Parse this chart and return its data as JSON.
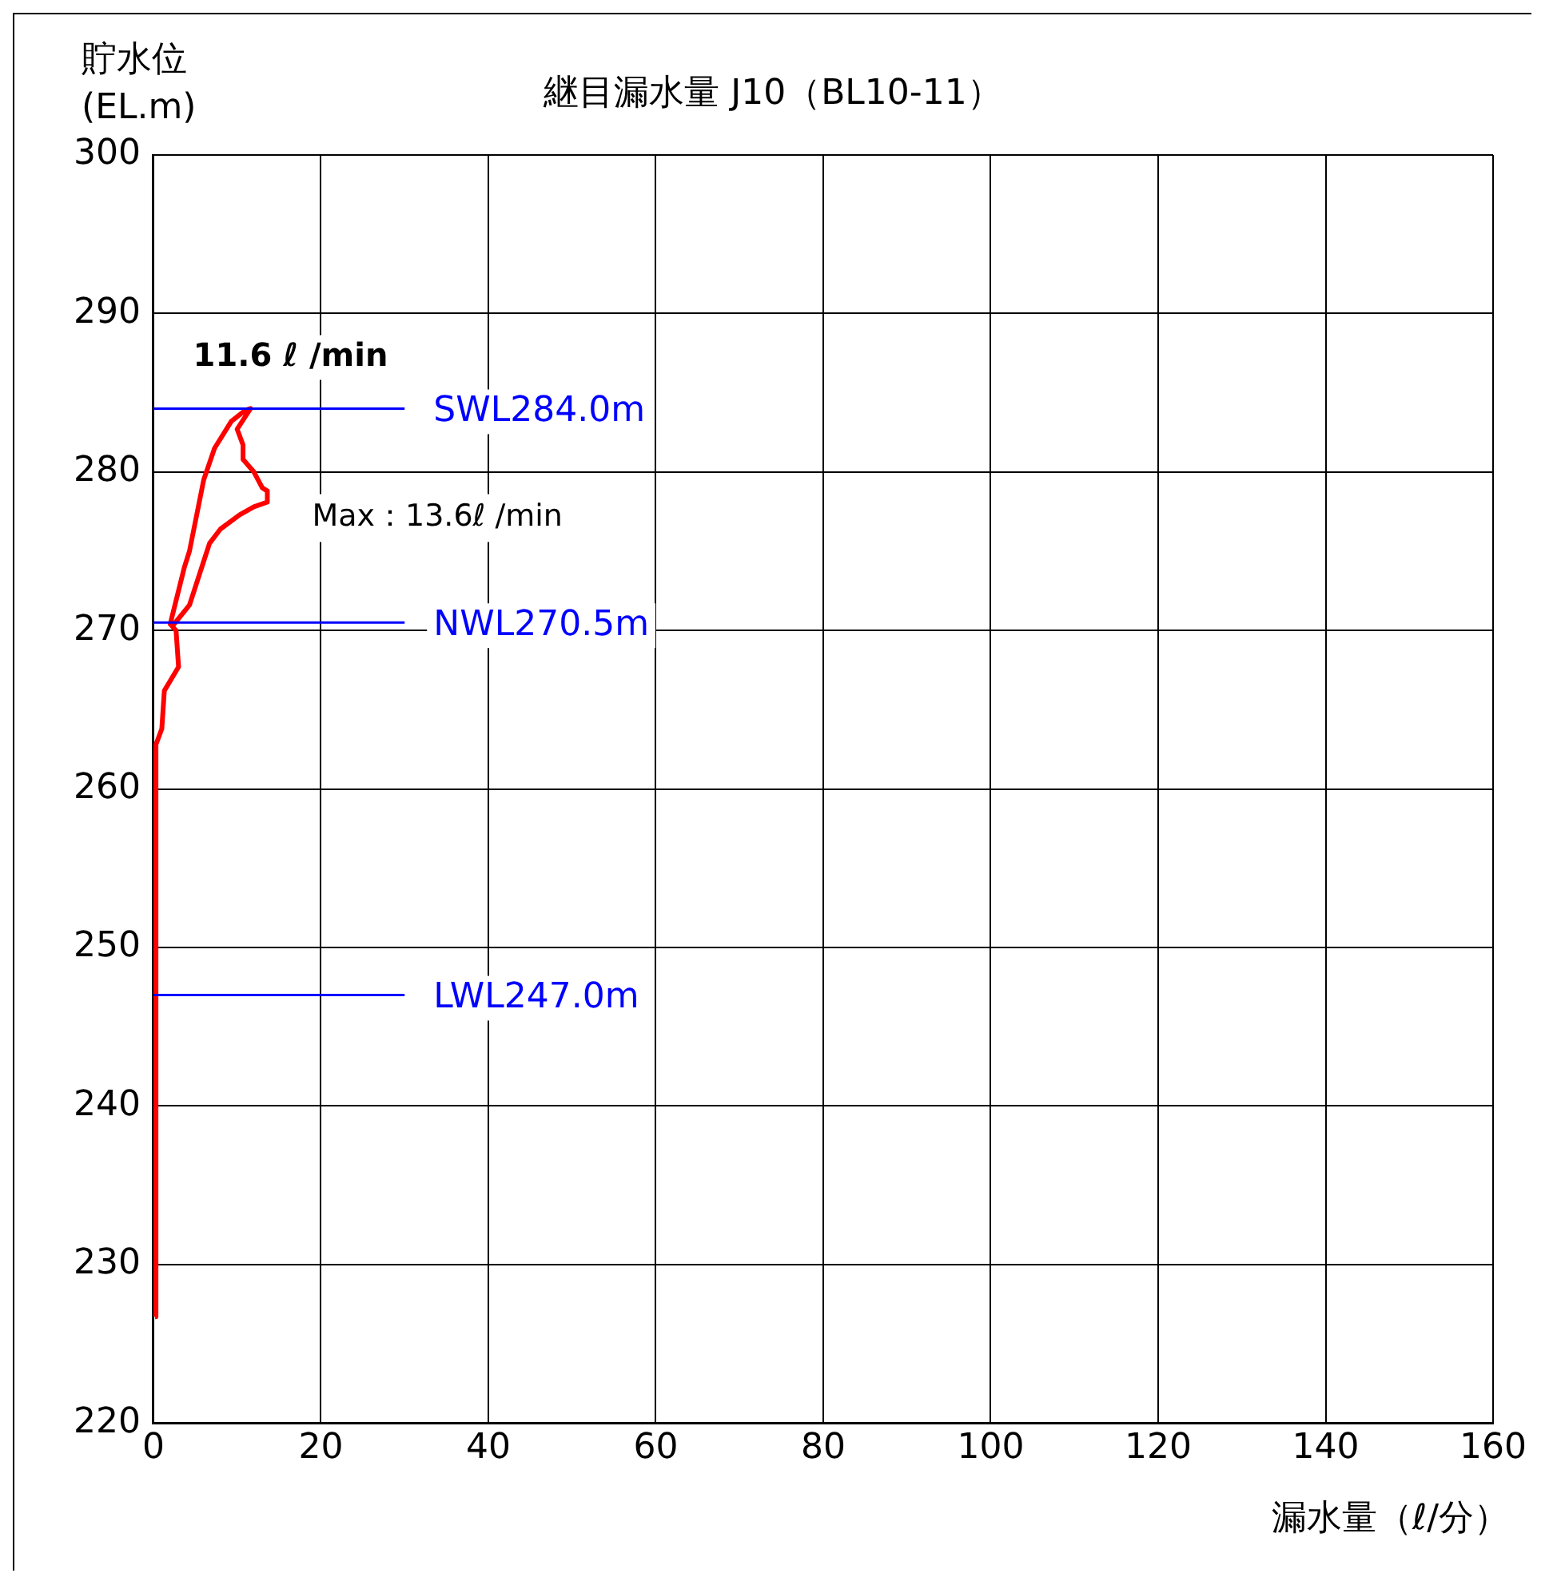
{
  "chart_data": {
    "type": "line",
    "title": "継目漏水量 J10（BL10-11）",
    "xlabel": "漏水量（ℓ/分）",
    "ylabel": "貯水位\n(EL.m)",
    "series": [
      {
        "color": "#ff0000",
        "x": [
          0.2,
          0.3,
          0.3,
          1,
          1.3,
          3,
          2.7,
          2,
          3.7,
          4.3,
          6,
          7.3,
          9.3,
          11,
          11.6,
          10,
          10.7,
          10.7,
          12,
          13,
          13.6,
          13.6,
          12,
          10.3,
          8,
          6.7,
          4.3,
          2.3,
          2
        ],
        "values": [
          226.7,
          262.5,
          262.8,
          263.8,
          266.2,
          267.7,
          270,
          270.4,
          274,
          275,
          279.5,
          281.5,
          283.2,
          283.9,
          284,
          282.7,
          281.7,
          280.8,
          280,
          279,
          278.8,
          278.1,
          277.8,
          277.3,
          276.4,
          275.5,
          271.6,
          270.3,
          270.4
        ]
      }
    ],
    "xlim": [
      0,
      160
    ],
    "xticks": [
      0,
      20,
      40,
      60,
      80,
      100,
      120,
      140,
      160
    ],
    "ylim": [
      220,
      300
    ],
    "yticks": [
      220,
      230,
      240,
      250,
      260,
      270,
      280,
      290,
      300
    ],
    "grid": true,
    "legend": false,
    "marker": "none",
    "line_style": "solid",
    "ref_lines": [
      {
        "axis": "y",
        "value": 284.0,
        "label": "SWL284.0m",
        "color": "#0000ff"
      },
      {
        "axis": "y",
        "value": 270.5,
        "label": "NWL270.5m",
        "color": "#0000ff"
      },
      {
        "axis": "y",
        "value": 247.0,
        "label": "LWL247.0m",
        "color": "#0000ff"
      }
    ],
    "annotations": [
      {
        "text": "11.6 ℓ /min",
        "x": 11.6,
        "y": 284
      },
      {
        "text": "Max：13.6ℓ /min",
        "x": 13.6,
        "y": 278.8
      }
    ]
  }
}
